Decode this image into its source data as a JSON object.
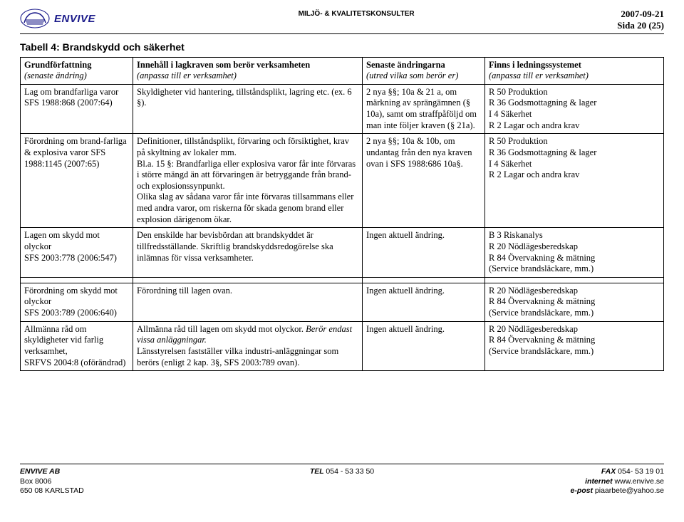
{
  "header": {
    "brand": "ENVIVE",
    "mid": "MILJÖ- & KVALITETSKONSULTER",
    "date": "2007-09-21",
    "page": "Sida 20 (25)"
  },
  "title": "Tabell 4: Brandskydd och säkerhet",
  "columns": {
    "c1a": "Grundförfattning",
    "c1b": "(senaste ändring)",
    "c2a": "Innehåll i lagkraven som berör verksamheten",
    "c2b": "(anpassa till er verksamhet)",
    "c3a": "Senaste ändringarna",
    "c3b": "(utred vilka som berör er)",
    "c4a": "Finns i ledningssystemet",
    "c4b": "(anpassa till er verksamhet)"
  },
  "rows": [
    {
      "c1": "Lag om brandfarliga varor SFS 1988:868 (2007:64)",
      "c2": "Skyldigheter vid hantering, tillståndsplikt, lagring etc. (ex. 6 §).",
      "c3": "2 nya §§; 10a & 21 a, om märkning av sprängämnen (§ 10a), samt om straffpåföljd om man inte följer kraven (§ 21a).",
      "c4": "R 50 Produktion\nR 36 Godsmottagning & lager\nI 4 Säkerhet\nR 2 Lagar och andra krav"
    },
    {
      "c1": "Förordning om brand-farliga & explosiva varor SFS 1988:1145 (2007:65)",
      "c2": "Definitioner, tillståndsplikt, förvaring och försiktighet, krav på skyltning av lokaler mm.\nBl.a. 15 §: Brandfarliga eller explosiva varor får inte förvaras i större mängd än att förvaringen är betryggande från brand- och explosionssynpunkt.\nOlika slag av sådana varor får inte förvaras tillsammans eller med andra varor, om riskerna för skada genom brand eller explosion därigenom ökar.",
      "c3": "2 nya §§; 10a & 10b, om undantag från den nya kraven ovan i SFS 1988:686 10a§.",
      "c4": "R 50 Produktion\nR 36 Godsmottagning & lager\nI 4  Säkerhet\nR 2  Lagar och andra krav"
    },
    {
      "c1": "Lagen om skydd mot olyckor\nSFS 2003:778 (2006:547)",
      "c2": "Den enskilde har bevisbördan att brandskyddet är tillfredsställande. Skriftlig brandskyddsredogörelse ska inlämnas för vissa verksamheter.",
      "c3": "Ingen aktuell ändring.",
      "c4": "B 3 Riskanalys\nR 20 Nödlägesberedskap\nR 84 Övervakning & mätning\n(Service brandsläckare, mm.)"
    },
    {
      "c1": "Förordning om skydd mot olyckor\nSFS 2003:789 (2006:640)",
      "c2": "Förordning till lagen ovan.",
      "c3": "Ingen aktuell ändring.",
      "c4": "R 20 Nödlägesberedskap\nR 84 Övervakning & mätning\n(Service brandsläckare, mm.)"
    },
    {
      "c1": "Allmänna råd om skyldigheter vid farlig verksamhet,\nSRFVS 2004:8 (oförändrad)",
      "c2p1": "Allmänna råd till lagen om skydd mot olyckor. ",
      "c2p2": "Berör endast vissa anläggningar.",
      "c2p3": "Länsstyrelsen fastställer vilka industri-anläggningar som berörs (enligt 2 kap. 3§, SFS 2003:789 ovan).",
      "c3": "Ingen aktuell ändring.",
      "c4": "R 20 Nödlägesberedskap\nR 84 Övervakning & mätning\n(Service brandsläckare, mm.)"
    }
  ],
  "footer": {
    "l1a": "ENVIVE AB",
    "l1b": "Box 8006",
    "l1c": "650 08 KARLSTAD",
    "m1a": "TEL ",
    "m1b": "054 - 53 33 50",
    "r1a": "FAX ",
    "r1b": "054- 53 19 01",
    "r2a": "internet ",
    "r2b": "www.envive.se",
    "r3a": "e-post ",
    "r3b": "piaarbete@yahoo.se"
  }
}
